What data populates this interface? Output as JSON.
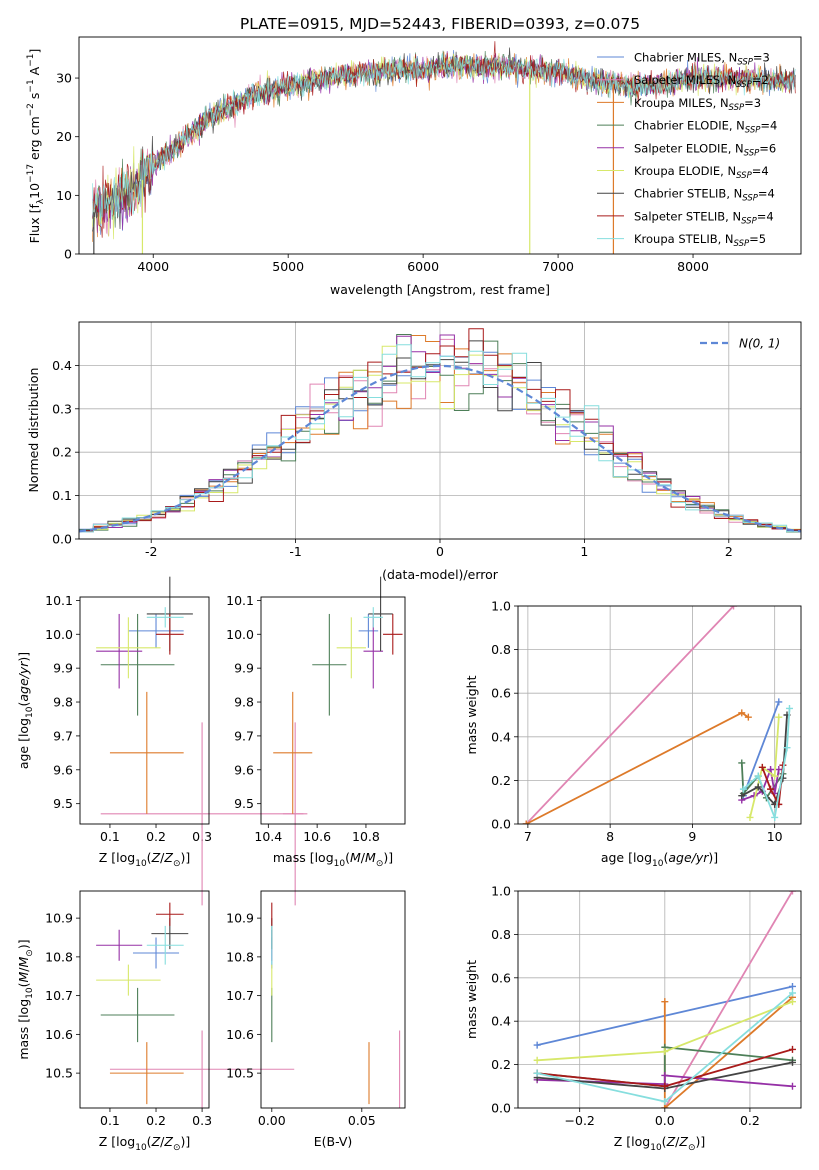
{
  "figure_title": "PLATE=0915, MJD=52443, FIBERID=0393, z=0.075",
  "colors": {
    "Chabrier MILES": "#5e87d6",
    "Salpeter MILES": "#e085b3",
    "Kroupa MILES": "#dd7a2a",
    "Chabrier ELODIE": "#4d7f58",
    "Salpeter ELODIE": "#9530a6",
    "Kroupa ELODIE": "#d7e86a",
    "Chabrier STELIB": "#444444",
    "Salpeter STELIB": "#a81a1a",
    "Kroupa STELIB": "#86dede"
  },
  "chart_data": [
    {
      "id": "spectrum",
      "type": "line",
      "title": "PLATE=0915, MJD=52443, FIBERID=0393, z=0.075",
      "xlabel": "wavelength [Angstrom, rest frame]",
      "ylabel": "Flux [f_λ10^-17 erg cm^-2 s^-1 A^-1]",
      "xlim": [
        3450,
        8800
      ],
      "ylim": [
        0,
        37
      ],
      "xticks": [
        4000,
        5000,
        6000,
        7000,
        8000
      ],
      "yticks": [
        0,
        10,
        20,
        30
      ],
      "grid": false,
      "legend_position": "top-right",
      "continuum": {
        "x": [
          3550,
          3700,
          3800,
          3900,
          4000,
          4100,
          4200,
          4300,
          4400,
          4500,
          4600,
          4700,
          4800,
          4900,
          5000,
          5200,
          5400,
          5600,
          5800,
          6000,
          6200,
          6400,
          6600,
          6800,
          7000,
          7200,
          7400,
          7600,
          7800,
          8000,
          8200,
          8400,
          8600,
          8750
        ],
        "y": [
          7,
          9,
          10,
          12,
          15,
          17,
          19,
          21,
          23,
          24.5,
          25.5,
          26.5,
          27.5,
          28,
          28.5,
          29.5,
          30.5,
          31,
          31.5,
          31.5,
          32,
          32,
          32,
          31.5,
          31,
          30,
          29,
          28.5,
          29,
          30,
          30,
          30,
          29.5,
          29.5
        ]
      },
      "series": [
        {
          "name": "Chabrier MILES",
          "n_ssp": "3"
        },
        {
          "name": "Salpeter MILES",
          "n_ssp": "2"
        },
        {
          "name": "Kroupa MILES",
          "n_ssp": "3"
        },
        {
          "name": "Chabrier ELODIE",
          "n_ssp": "4"
        },
        {
          "name": "Salpeter ELODIE",
          "n_ssp": "6"
        },
        {
          "name": "Kroupa ELODIE",
          "n_ssp": "4"
        },
        {
          "name": "Chabrier STELIB",
          "n_ssp": "4"
        },
        {
          "name": "Salpeter STELIB",
          "n_ssp": "4"
        },
        {
          "name": "Kroupa STELIB",
          "n_ssp": "5"
        }
      ]
    },
    {
      "id": "residuals",
      "type": "histogram",
      "xlabel": "(data-model)/error",
      "ylabel": "Normed distribution",
      "xlim": [
        -2.5,
        2.5
      ],
      "ylim": [
        0,
        0.5
      ],
      "xticks": [
        -2,
        -1,
        0,
        1,
        2
      ],
      "yticks": [
        0.0,
        0.1,
        0.2,
        0.3,
        0.4
      ],
      "grid": true,
      "legend_position": "top-right",
      "reference_curve": "N(0,1)",
      "legend_label": "N(0, 1)"
    },
    {
      "id": "age_vs_Z",
      "type": "errorbar",
      "xlabel": "Z [log10(Z/Z⊙)]",
      "ylabel": "age [log10(age/yr)]",
      "xlim": [
        0.035,
        0.315
      ],
      "ylim": [
        9.44,
        10.11
      ],
      "xticks": [
        0.1,
        0.2,
        0.3
      ],
      "yticks": [
        9.5,
        9.6,
        9.7,
        9.8,
        9.9,
        10.0,
        10.1
      ],
      "grid": false,
      "points": [
        {
          "series": "Chabrier MILES",
          "x": 0.2,
          "xerr": 0.06,
          "y": 10.01,
          "yerr": 0.05
        },
        {
          "series": "Salpeter MILES",
          "x": 0.3,
          "xerr": 0.22,
          "y": 9.47,
          "yerr": 0.27
        },
        {
          "series": "Kroupa MILES",
          "x": 0.18,
          "xerr": 0.08,
          "y": 9.65,
          "yerr": 0.18
        },
        {
          "series": "Chabrier ELODIE",
          "x": 0.16,
          "xerr": 0.08,
          "y": 9.91,
          "yerr": 0.15
        },
        {
          "series": "Salpeter ELODIE",
          "x": 0.12,
          "xerr": 0.05,
          "y": 9.95,
          "yerr": 0.11
        },
        {
          "series": "Kroupa ELODIE",
          "x": 0.14,
          "xerr": 0.07,
          "y": 9.96,
          "yerr": 0.09
        },
        {
          "series": "Chabrier STELIB",
          "x": 0.23,
          "xerr": 0.05,
          "y": 10.06,
          "yerr": 0.11
        },
        {
          "series": "Salpeter STELIB",
          "x": 0.23,
          "xerr": 0.03,
          "y": 10.0,
          "yerr": 0.06
        },
        {
          "series": "Kroupa STELIB",
          "x": 0.22,
          "xerr": 0.04,
          "y": 10.05,
          "yerr": 0.03
        }
      ]
    },
    {
      "id": "age_vs_mass",
      "type": "errorbar",
      "xlabel": "mass [log10(M/M⊙)]",
      "ylabel": "",
      "xlim": [
        10.37,
        10.96
      ],
      "ylim": [
        9.44,
        10.11
      ],
      "xticks": [
        10.4,
        10.6,
        10.8
      ],
      "yticks": [
        9.5,
        9.6,
        9.7,
        9.8,
        9.9,
        10.0,
        10.1
      ],
      "grid": false,
      "points": [
        {
          "series": "Chabrier MILES",
          "x": 10.81,
          "xerr": 0.04,
          "y": 10.01,
          "yerr": 0.05
        },
        {
          "series": "Salpeter MILES",
          "x": 10.51,
          "xerr": 0.05,
          "y": 9.47,
          "yerr": 0.27
        },
        {
          "series": "Kroupa MILES",
          "x": 10.5,
          "xerr": 0.08,
          "y": 9.65,
          "yerr": 0.18
        },
        {
          "series": "Chabrier ELODIE",
          "x": 10.65,
          "xerr": 0.07,
          "y": 9.91,
          "yerr": 0.15
        },
        {
          "series": "Salpeter ELODIE",
          "x": 10.83,
          "xerr": 0.04,
          "y": 9.95,
          "yerr": 0.11
        },
        {
          "series": "Kroupa ELODIE",
          "x": 10.74,
          "xerr": 0.06,
          "y": 9.96,
          "yerr": 0.09
        },
        {
          "series": "Chabrier STELIB",
          "x": 10.86,
          "xerr": 0.05,
          "y": 10.06,
          "yerr": 0.11
        },
        {
          "series": "Salpeter STELIB",
          "x": 10.91,
          "xerr": 0.04,
          "y": 10.0,
          "yerr": 0.06
        },
        {
          "series": "Kroupa STELIB",
          "x": 10.83,
          "xerr": 0.04,
          "y": 10.05,
          "yerr": 0.03
        }
      ]
    },
    {
      "id": "mass_weight_vs_age",
      "type": "line",
      "xlabel": "age [log10(age/yr)]",
      "ylabel": "mass weight",
      "xlim": [
        6.88,
        10.32
      ],
      "ylim": [
        0,
        1.0
      ],
      "xticks": [
        7,
        8,
        9,
        10
      ],
      "yticks": [
        0.0,
        0.2,
        0.4,
        0.6,
        0.8,
        1.0
      ],
      "grid": true,
      "series": [
        {
          "name": "Chabrier MILES",
          "x": [
            9.62,
            10.05
          ],
          "y": [
            0.13,
            0.56
          ]
        },
        {
          "name": "Salpeter MILES",
          "x": [
            6.98,
            9.5
          ],
          "y": [
            0.0,
            1.0
          ]
        },
        {
          "name": "Kroupa MILES",
          "x": [
            6.98,
            9.6,
            9.68
          ],
          "y": [
            0.0,
            0.51,
            0.49
          ]
        },
        {
          "name": "Chabrier ELODIE",
          "x": [
            9.6,
            9.62,
            9.8,
            9.9,
            10.1
          ],
          "y": [
            0.28,
            0.14,
            0.22,
            0.12,
            0.23
          ]
        },
        {
          "name": "Salpeter ELODIE",
          "x": [
            9.6,
            9.75,
            9.85,
            9.95,
            10.0,
            10.05
          ],
          "y": [
            0.11,
            0.13,
            0.15,
            0.25,
            0.14,
            0.25
          ]
        },
        {
          "name": "Kroupa ELODIE",
          "x": [
            9.7,
            9.85,
            10.0,
            10.05
          ],
          "y": [
            0.03,
            0.26,
            0.22,
            0.49
          ]
        },
        {
          "name": "Chabrier STELIB",
          "x": [
            9.6,
            9.8,
            10.0,
            10.1,
            10.15
          ],
          "y": [
            0.13,
            0.17,
            0.09,
            0.21,
            0.5
          ]
        },
        {
          "name": "Salpeter STELIB",
          "x": [
            9.85,
            9.95,
            10.05,
            10.1
          ],
          "y": [
            0.26,
            0.16,
            0.09,
            0.27
          ]
        },
        {
          "name": "Kroupa STELIB",
          "x": [
            9.62,
            9.8,
            10.0,
            10.15,
            10.18
          ],
          "y": [
            0.16,
            0.22,
            0.03,
            0.35,
            0.53
          ]
        }
      ]
    },
    {
      "id": "mass_vs_Z",
      "type": "errorbar",
      "xlabel": "Z [log10(Z/Z⊙)]",
      "ylabel": "mass [log10(M/M⊙)]",
      "xlim": [
        0.035,
        0.315
      ],
      "ylim": [
        10.41,
        10.97
      ],
      "xticks": [
        0.1,
        0.2,
        0.3
      ],
      "yticks": [
        10.5,
        10.6,
        10.7,
        10.8,
        10.9
      ],
      "grid": false,
      "points": [
        {
          "series": "Chabrier MILES",
          "x": 0.2,
          "xerr": 0.05,
          "y": 10.81,
          "yerr": 0.04
        },
        {
          "series": "Salpeter MILES",
          "x": 0.3,
          "xerr": 0.2,
          "y": 10.51,
          "yerr": 0.1
        },
        {
          "series": "Kroupa MILES",
          "x": 0.18,
          "xerr": 0.08,
          "y": 10.5,
          "yerr": 0.08
        },
        {
          "series": "Chabrier ELODIE",
          "x": 0.16,
          "xerr": 0.08,
          "y": 10.65,
          "yerr": 0.07
        },
        {
          "series": "Salpeter ELODIE",
          "x": 0.12,
          "xerr": 0.05,
          "y": 10.83,
          "yerr": 0.04
        },
        {
          "series": "Kroupa ELODIE",
          "x": 0.14,
          "xerr": 0.07,
          "y": 10.74,
          "yerr": 0.04
        },
        {
          "series": "Chabrier STELIB",
          "x": 0.23,
          "xerr": 0.04,
          "y": 10.86,
          "yerr": 0.04
        },
        {
          "series": "Salpeter STELIB",
          "x": 0.23,
          "xerr": 0.03,
          "y": 10.91,
          "yerr": 0.03
        },
        {
          "series": "Kroupa STELIB",
          "x": 0.22,
          "xerr": 0.04,
          "y": 10.83,
          "yerr": 0.05
        }
      ]
    },
    {
      "id": "mass_vs_EBV",
      "type": "errorbar",
      "xlabel": "E(B-V)",
      "ylabel": "",
      "xlim": [
        -0.006,
        0.074
      ],
      "ylim": [
        10.41,
        10.97
      ],
      "xticks": [
        0.0,
        0.05
      ],
      "yticks": [
        10.5,
        10.6,
        10.7,
        10.8,
        10.9
      ],
      "grid": false,
      "points": [
        {
          "series": "Chabrier MILES",
          "x": 0.0,
          "xerr": 0,
          "y": 10.81,
          "yerr": 0.04
        },
        {
          "series": "Salpeter MILES",
          "x": 0.071,
          "xerr": 0,
          "y": 10.51,
          "yerr": 0.1
        },
        {
          "series": "Kroupa MILES",
          "x": 0.054,
          "xerr": 0,
          "y": 10.5,
          "yerr": 0.08
        },
        {
          "series": "Chabrier ELODIE",
          "x": 0.0,
          "xerr": 0,
          "y": 10.65,
          "yerr": 0.07
        },
        {
          "series": "Salpeter ELODIE",
          "x": 0.0,
          "xerr": 0,
          "y": 10.83,
          "yerr": 0.04
        },
        {
          "series": "Kroupa ELODIE",
          "x": 0.0,
          "xerr": 0,
          "y": 10.74,
          "yerr": 0.04
        },
        {
          "series": "Chabrier STELIB",
          "x": 0.0,
          "xerr": 0,
          "y": 10.86,
          "yerr": 0.04
        },
        {
          "series": "Salpeter STELIB",
          "x": 0.0,
          "xerr": 0,
          "y": 10.91,
          "yerr": 0.03
        },
        {
          "series": "Kroupa STELIB",
          "x": 0.0,
          "xerr": 0,
          "y": 10.83,
          "yerr": 0.05
        }
      ]
    },
    {
      "id": "mass_weight_vs_Z",
      "type": "line",
      "xlabel": "Z [log10(Z/Z⊙)]",
      "ylabel": "mass weight",
      "xlim": [
        -0.345,
        0.32
      ],
      "ylim": [
        0,
        1.0
      ],
      "xticks": [
        -0.2,
        0.0,
        0.2
      ],
      "yticks": [
        0.0,
        0.2,
        0.4,
        0.6,
        0.8,
        1.0
      ],
      "grid": true,
      "series": [
        {
          "name": "Chabrier MILES",
          "x": [
            -0.3,
            0.3
          ],
          "y": [
            0.29,
            0.56
          ]
        },
        {
          "name": "Salpeter MILES",
          "x": [
            0.0,
            0.3
          ],
          "y": [
            0.0,
            1.0
          ]
        },
        {
          "name": "Kroupa MILES",
          "x": [
            0.0,
            0.0,
            0.3
          ],
          "y": [
            0.49,
            0.0,
            0.51
          ]
        },
        {
          "name": "Chabrier ELODIE",
          "x": [
            -0.3,
            0.0,
            0.0,
            0.3
          ],
          "y": [
            0.16,
            0.1,
            0.28,
            0.22
          ]
        },
        {
          "name": "Salpeter ELODIE",
          "x": [
            -0.3,
            0.0,
            0.0,
            0.3
          ],
          "y": [
            0.13,
            0.11,
            0.15,
            0.1
          ]
        },
        {
          "name": "Kroupa ELODIE",
          "x": [
            -0.3,
            0.0,
            0.3
          ],
          "y": [
            0.22,
            0.26,
            0.49
          ]
        },
        {
          "name": "Chabrier STELIB",
          "x": [
            -0.3,
            0.0,
            0.3
          ],
          "y": [
            0.14,
            0.09,
            0.21
          ]
        },
        {
          "name": "Salpeter STELIB",
          "x": [
            -0.3,
            0.0,
            0.3
          ],
          "y": [
            0.16,
            0.1,
            0.27
          ]
        },
        {
          "name": "Kroupa STELIB",
          "x": [
            -0.3,
            0.0,
            0.3
          ],
          "y": [
            0.16,
            0.03,
            0.53
          ]
        }
      ]
    }
  ]
}
